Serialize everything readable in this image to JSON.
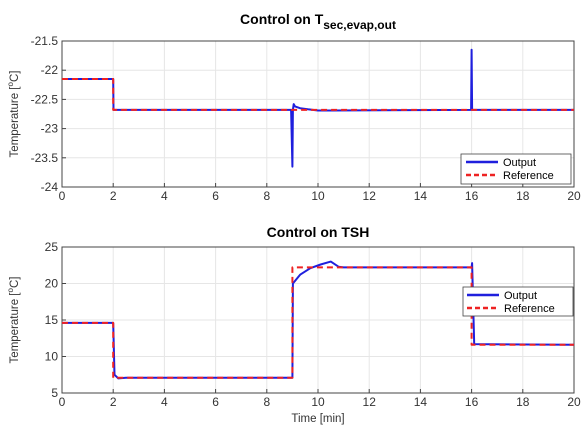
{
  "chart_data": [
    {
      "type": "line",
      "title": "Control on T",
      "title_subscript": "sec,evap,out",
      "xlabel": "",
      "ylabel": "Temperature [",
      "ylabel_sup": "o",
      "ylabel_end": "C]",
      "xlim": [
        0,
        20
      ],
      "ylim": [
        -24,
        -21.5
      ],
      "xticks": [
        0,
        2,
        4,
        6,
        8,
        10,
        12,
        14,
        16,
        18,
        20
      ],
      "yticks": [
        -24,
        -23.5,
        -23,
        -22.5,
        -22,
        -21.5
      ],
      "grid": true,
      "legend_position": "bottom-right",
      "series": [
        {
          "name": "Output",
          "color": "#1f1fdd",
          "style": "solid",
          "x": [
            0,
            2,
            2.01,
            2.1,
            8.95,
            9.0,
            9.02,
            9.05,
            9.1,
            9.3,
            9.6,
            10.0,
            10.5,
            15.98,
            16.0,
            16.02,
            20
          ],
          "y": [
            -22.15,
            -22.15,
            -22.68,
            -22.68,
            -22.68,
            -23.65,
            -22.68,
            -22.58,
            -22.62,
            -22.65,
            -22.67,
            -22.69,
            -22.69,
            -22.68,
            -21.65,
            -22.68,
            -22.68
          ]
        },
        {
          "name": "Reference",
          "color": "#ee2222",
          "style": "dashed",
          "x": [
            0,
            2,
            2,
            20
          ],
          "y": [
            -22.15,
            -22.15,
            -22.68,
            -22.68
          ]
        }
      ]
    },
    {
      "type": "line",
      "title": "Control on TSH",
      "xlabel": "Time [min]",
      "ylabel": "Temperature [",
      "ylabel_sup": "o",
      "ylabel_end": "C]",
      "xlim": [
        0,
        20
      ],
      "ylim": [
        5,
        25
      ],
      "xticks": [
        0,
        2,
        4,
        6,
        8,
        10,
        12,
        14,
        16,
        18,
        20
      ],
      "yticks": [
        5,
        10,
        15,
        20,
        25
      ],
      "grid": true,
      "legend_position": "right",
      "series": [
        {
          "name": "Output",
          "color": "#1f1fdd",
          "style": "solid",
          "x": [
            0,
            2,
            2.05,
            2.2,
            2.5,
            9.0,
            9.02,
            9.3,
            9.7,
            10.1,
            10.5,
            10.8,
            11,
            16.0,
            16.02,
            16.1,
            20
          ],
          "y": [
            14.6,
            14.6,
            7.5,
            7.0,
            7.1,
            7.1,
            20.0,
            21.2,
            22.1,
            22.6,
            23.0,
            22.3,
            22.2,
            22.2,
            22.8,
            11.7,
            11.6
          ]
        },
        {
          "name": "Reference",
          "color": "#ee2222",
          "style": "dashed",
          "x": [
            0,
            2,
            2,
            9,
            9,
            16,
            16,
            20
          ],
          "y": [
            14.6,
            14.6,
            7.1,
            7.1,
            22.2,
            22.2,
            11.6,
            11.6
          ]
        }
      ]
    }
  ]
}
